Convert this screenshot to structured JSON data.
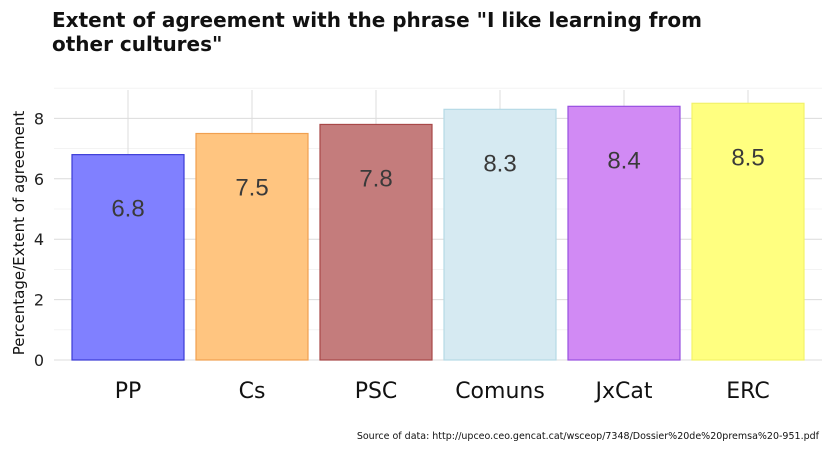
{
  "chart_data": {
    "type": "bar",
    "title": "Extent of agreement with the phrase \"I like learning from other cultures\"",
    "ylabel": "Percentage/Extent of agreement",
    "xlabel": "",
    "categories": [
      "PP",
      "Cs",
      "PSC",
      "Comuns",
      "JxCat",
      "ERC"
    ],
    "values": [
      6.8,
      7.5,
      7.8,
      8.3,
      8.4,
      8.5
    ],
    "value_labels": [
      "6.8",
      "7.5",
      "7.8",
      "8.3",
      "8.4",
      "8.5"
    ],
    "colors": [
      "#8080ff",
      "#ffc580",
      "#c47c7c",
      "#d6eaf2",
      "#d18af4",
      "#ffff80"
    ],
    "edge_colors": [
      "#3b3bd6",
      "#f0a050",
      "#a84848",
      "#b6dae6",
      "#9850e0",
      "#f2f26a"
    ],
    "yticks": [
      0,
      2,
      4,
      6,
      8
    ],
    "ylim": [
      0,
      9
    ],
    "grid": true,
    "caption": "Source of data: http://upceo.ceo.gencat.cat/wsceop/7348/Dossier%20de%20premsa%20-951.pdf"
  }
}
